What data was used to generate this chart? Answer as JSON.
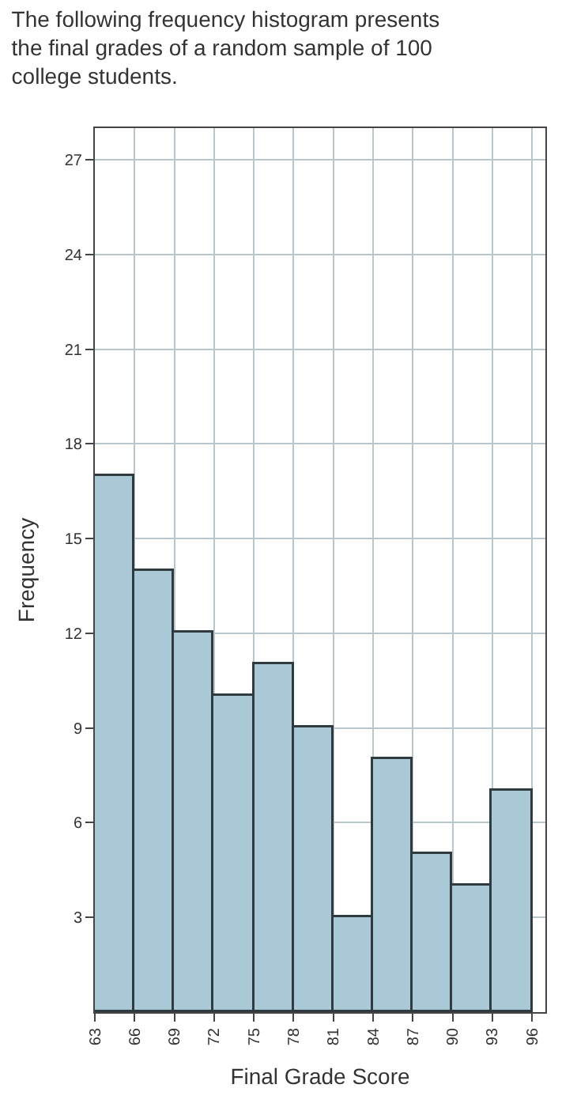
{
  "chart_data": {
    "type": "histogram",
    "title": "The following frequency histogram presents the final grades of a random sample of 100 college students.",
    "xlabel": "Final Grade Score",
    "ylabel": "Frequency",
    "bins": [
      63,
      66,
      69,
      72,
      75,
      78,
      81,
      84,
      87,
      90,
      93,
      96
    ],
    "values": [
      17,
      14,
      12,
      10,
      11,
      9,
      3,
      8,
      5,
      4,
      7
    ],
    "color": "#a9c9d6",
    "xlim": [
      63,
      97
    ],
    "xticks": [
      63,
      66,
      69,
      72,
      75,
      78,
      81,
      84,
      87,
      90,
      93,
      96
    ],
    "ylim": [
      0,
      28
    ],
    "yticks": [
      3,
      6,
      9,
      12,
      15,
      18,
      21,
      24,
      27
    ],
    "grid": true
  }
}
